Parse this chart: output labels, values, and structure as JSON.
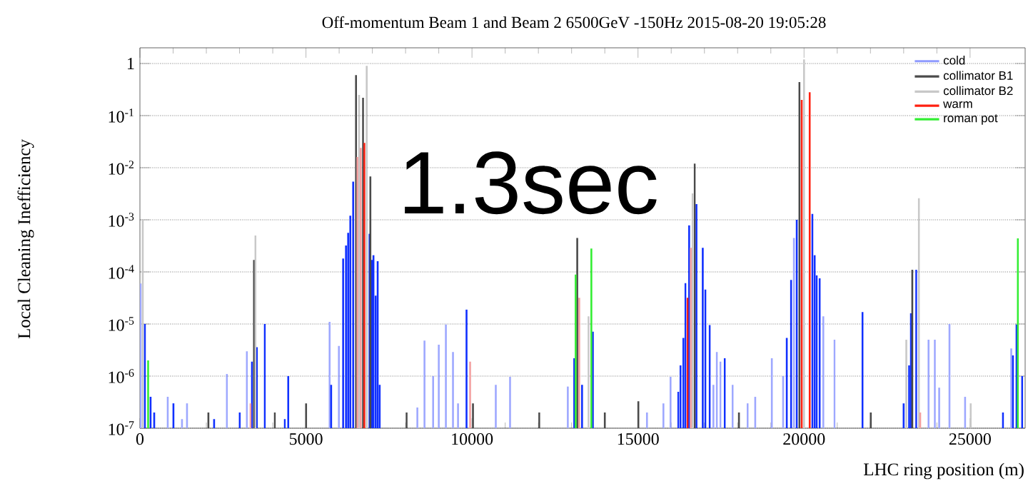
{
  "chart_data": {
    "type": "bar",
    "title": "Off-momentum Beam 1 and Beam 2 6500GeV -150Hz 2015-08-20 19:05:28",
    "xlabel": "LHC ring position (m)",
    "ylabel": "Local Cleaning Inefficiency",
    "annotations": [
      "1.3sec"
    ],
    "xlim": [
      0,
      26659
    ],
    "ylim": [
      1e-07,
      2
    ],
    "log": "y",
    "grid": "y",
    "legend": "top right",
    "xticks": [
      0,
      5000,
      10000,
      15000,
      20000,
      25000
    ],
    "yticks": [
      {
        "value": 1e-07,
        "label": "10$^{-7}$"
      },
      {
        "value": 1e-06,
        "label": "10$^{-6}$"
      },
      {
        "value": 1e-05,
        "label": "10$^{-5}$"
      },
      {
        "value": 0.0001,
        "label": "10$^{-4}$"
      },
      {
        "value": 0.001,
        "label": "10$^{-3}$"
      },
      {
        "value": 0.01,
        "label": "10$^{-2}$"
      },
      {
        "value": 0.1,
        "label": "10$^{-1}$"
      },
      1
    ],
    "series": [
      {
        "name": "cold",
        "color": "#8f9bff",
        "x": [
          20,
          150,
          322,
          430,
          838,
          1009,
          1267,
          1418,
          2234,
          2620,
          3007,
          3222,
          3372,
          3522,
          3758,
          4360,
          4467,
          5713,
          5760,
          5992,
          6120,
          6206,
          6271,
          6336,
          6422,
          6915,
          6990,
          7033,
          7100,
          7160,
          7220,
          8355,
          8570,
          8830,
          9000,
          9214,
          9428,
          9580,
          9836,
          10717,
          11147,
          12886,
          13080,
          13315,
          13640,
          15270,
          15765,
          15980,
          16215,
          16280,
          16366,
          16430,
          16540,
          16760,
          16950,
          17030,
          17160,
          17270,
          17375,
          17480,
          17610,
          17850,
          18300,
          18530,
          19030,
          19370,
          19480,
          19610,
          19695,
          19780,
          20250,
          20320,
          20380,
          20470,
          20580,
          20920,
          21760,
          23000,
          23165,
          23220,
          23380,
          23750,
          23940,
          24070,
          24380,
          24850,
          25990,
          26240,
          26290,
          26400,
          26570
        ],
        "values": [
          6e-05,
          1e-05,
          4e-07,
          2e-07,
          4e-07,
          3e-07,
          1.5e-07,
          3e-07,
          1.5e-07,
          1.1e-06,
          2e-07,
          3e-06,
          1.9e-06,
          3.6e-06,
          1e-05,
          1.5e-07,
          1e-06,
          1.1e-05,
          6.8e-07,
          3.8e-06,
          0.00018,
          0.00032,
          0.00056,
          0.0012,
          0.0054,
          0.00054,
          0.00017,
          0.00021,
          3.5e-05,
          0.00016,
          6.8e-07,
          2.5e-07,
          4.8e-06,
          1e-06,
          4e-06,
          9.8e-06,
          2.9e-06,
          3e-07,
          1.9e-05,
          6.8e-07,
          9.7e-07,
          6.3e-07,
          2.2e-06,
          6.8e-07,
          7.1e-06,
          2e-07,
          3e-07,
          9.7e-07,
          5e-07,
          1.6e-06,
          5.4e-06,
          6.1e-05,
          0.00078,
          0.002,
          0.00029,
          4.6e-05,
          9.5e-06,
          6.8e-07,
          2.9e-06,
          1.9e-06,
          2.2e-06,
          6.8e-07,
          3e-07,
          4e-07,
          2.2e-06,
          1e-06,
          5.4e-06,
          7e-05,
          0.00045,
          0.001,
          0.0013,
          0.00021,
          8.6e-05,
          7.5e-05,
          1.4e-05,
          5e-06,
          1.7e-05,
          3e-07,
          1.6e-06,
          1.6e-05,
          0.00011,
          5e-06,
          5e-06,
          6e-07,
          1e-05,
          4e-07,
          2e-07,
          3.4e-06,
          2.5e-06,
          9.8e-06,
          1e-06
        ],
        "colors": [
          "#9ea8ff",
          "#1030ff",
          "#1030ff",
          "#1030ff",
          "#9ea8ff",
          "#1030ff",
          "#9ea8ff",
          "#9ea8ff",
          "#1030ff",
          "#9ea8ff",
          "#1030ff",
          "#9ea8ff",
          "#1030ff",
          "#1030ff",
          "#1030ff",
          "#1030ff",
          "#1030ff",
          "#9ea8ff",
          "#1030ff",
          "#9ea8ff",
          "#1030ff",
          "#1030ff",
          "#1030ff",
          "#1030ff",
          "#1030ff",
          "#1030ff",
          "#1030ff",
          "#1030ff",
          "#1030ff",
          "#1030ff",
          "#1030ff",
          "#9ea8ff",
          "#9ea8ff",
          "#9ea8ff",
          "#9ea8ff",
          "#9ea8ff",
          "#9ea8ff",
          "#9ea8ff",
          "#1030ff",
          "#9ea8ff",
          "#9ea8ff",
          "#9ea8ff",
          "#1030ff",
          "#1030ff",
          "#1030ff",
          "#9ea8ff",
          "#9ea8ff",
          "#9ea8ff",
          "#1030ff",
          "#1030ff",
          "#1030ff",
          "#1030ff",
          "#1030ff",
          "#1030ff",
          "#1030ff",
          "#1030ff",
          "#1030ff",
          "#9ea8ff",
          "#9ea8ff",
          "#9ea8ff",
          "#1030ff",
          "#9ea8ff",
          "#9ea8ff",
          "#9ea8ff",
          "#9ea8ff",
          "#9ea8ff",
          "#1030ff",
          "#1030ff",
          "#9ea8ff",
          "#1030ff",
          "#1030ff",
          "#1030ff",
          "#1030ff",
          "#1030ff",
          "#9ea8ff",
          "#9ea8ff",
          "#1030ff",
          "#1030ff",
          "#1030ff",
          "#1030ff",
          "#1030ff",
          "#9ea8ff",
          "#9ea8ff",
          "#9ea8ff",
          "#9ea8ff",
          "#9ea8ff",
          "#1030ff",
          "#9ea8ff",
          "#1030ff",
          "#1030ff",
          "#1030ff"
        ]
      },
      {
        "name": "collimator B1",
        "color": "#4a4a4a",
        "x": [
          2062,
          3436,
          4060,
          5004,
          6508,
          6720,
          6940,
          8030,
          10030,
          12027,
          13170,
          14000,
          15010,
          16705,
          18040,
          19860,
          22010,
          23260
        ],
        "values": [
          2e-07,
          0.00017,
          2e-07,
          3e-07,
          0.6,
          0.22,
          0.0068,
          2e-07,
          3e-07,
          2e-07,
          0.00045,
          2e-07,
          3.3e-07,
          0.012,
          2e-07,
          0.44,
          2e-07,
          0.00011
        ]
      },
      {
        "name": "collimator B2",
        "color": "#c8c8c8",
        "x": [
          85,
          3480,
          6600,
          6830,
          13510,
          16645,
          20000,
          23080,
          23460,
          25020
        ],
        "values": [
          0.001,
          0.0005,
          0.25,
          0.9,
          1.4e-05,
          0.0032,
          1.2,
          5e-06,
          0.0026,
          3e-07
        ]
      },
      {
        "name": "warm",
        "color": "#ff2010",
        "x": [
          3329,
          6550,
          6650,
          6760,
          9944,
          13230,
          16490,
          16590,
          19930,
          20170,
          23500
        ],
        "values": [
          3e-07,
          0.016,
          0.024,
          0.03,
          1.9e-06,
          3.2e-05,
          3.2e-05,
          0.00029,
          0.2,
          0.28,
          2e-07
        ],
        "colors": [
          "#f4a0a0",
          "#f4a0a0",
          "#f4a0a0",
          "#ff2010",
          "#f4a0a0",
          "#f4a0a0",
          "#ff2010",
          "#f4a0a0",
          "#ff2010",
          "#ff2010",
          "#f4a0a0"
        ]
      },
      {
        "name": "roman pot",
        "color": "#33ee33",
        "x": [
          247,
          13122,
          13595,
          26440
        ],
        "values": [
          2e-06,
          8.9e-05,
          0.00028,
          0.00044
        ]
      }
    ]
  }
}
